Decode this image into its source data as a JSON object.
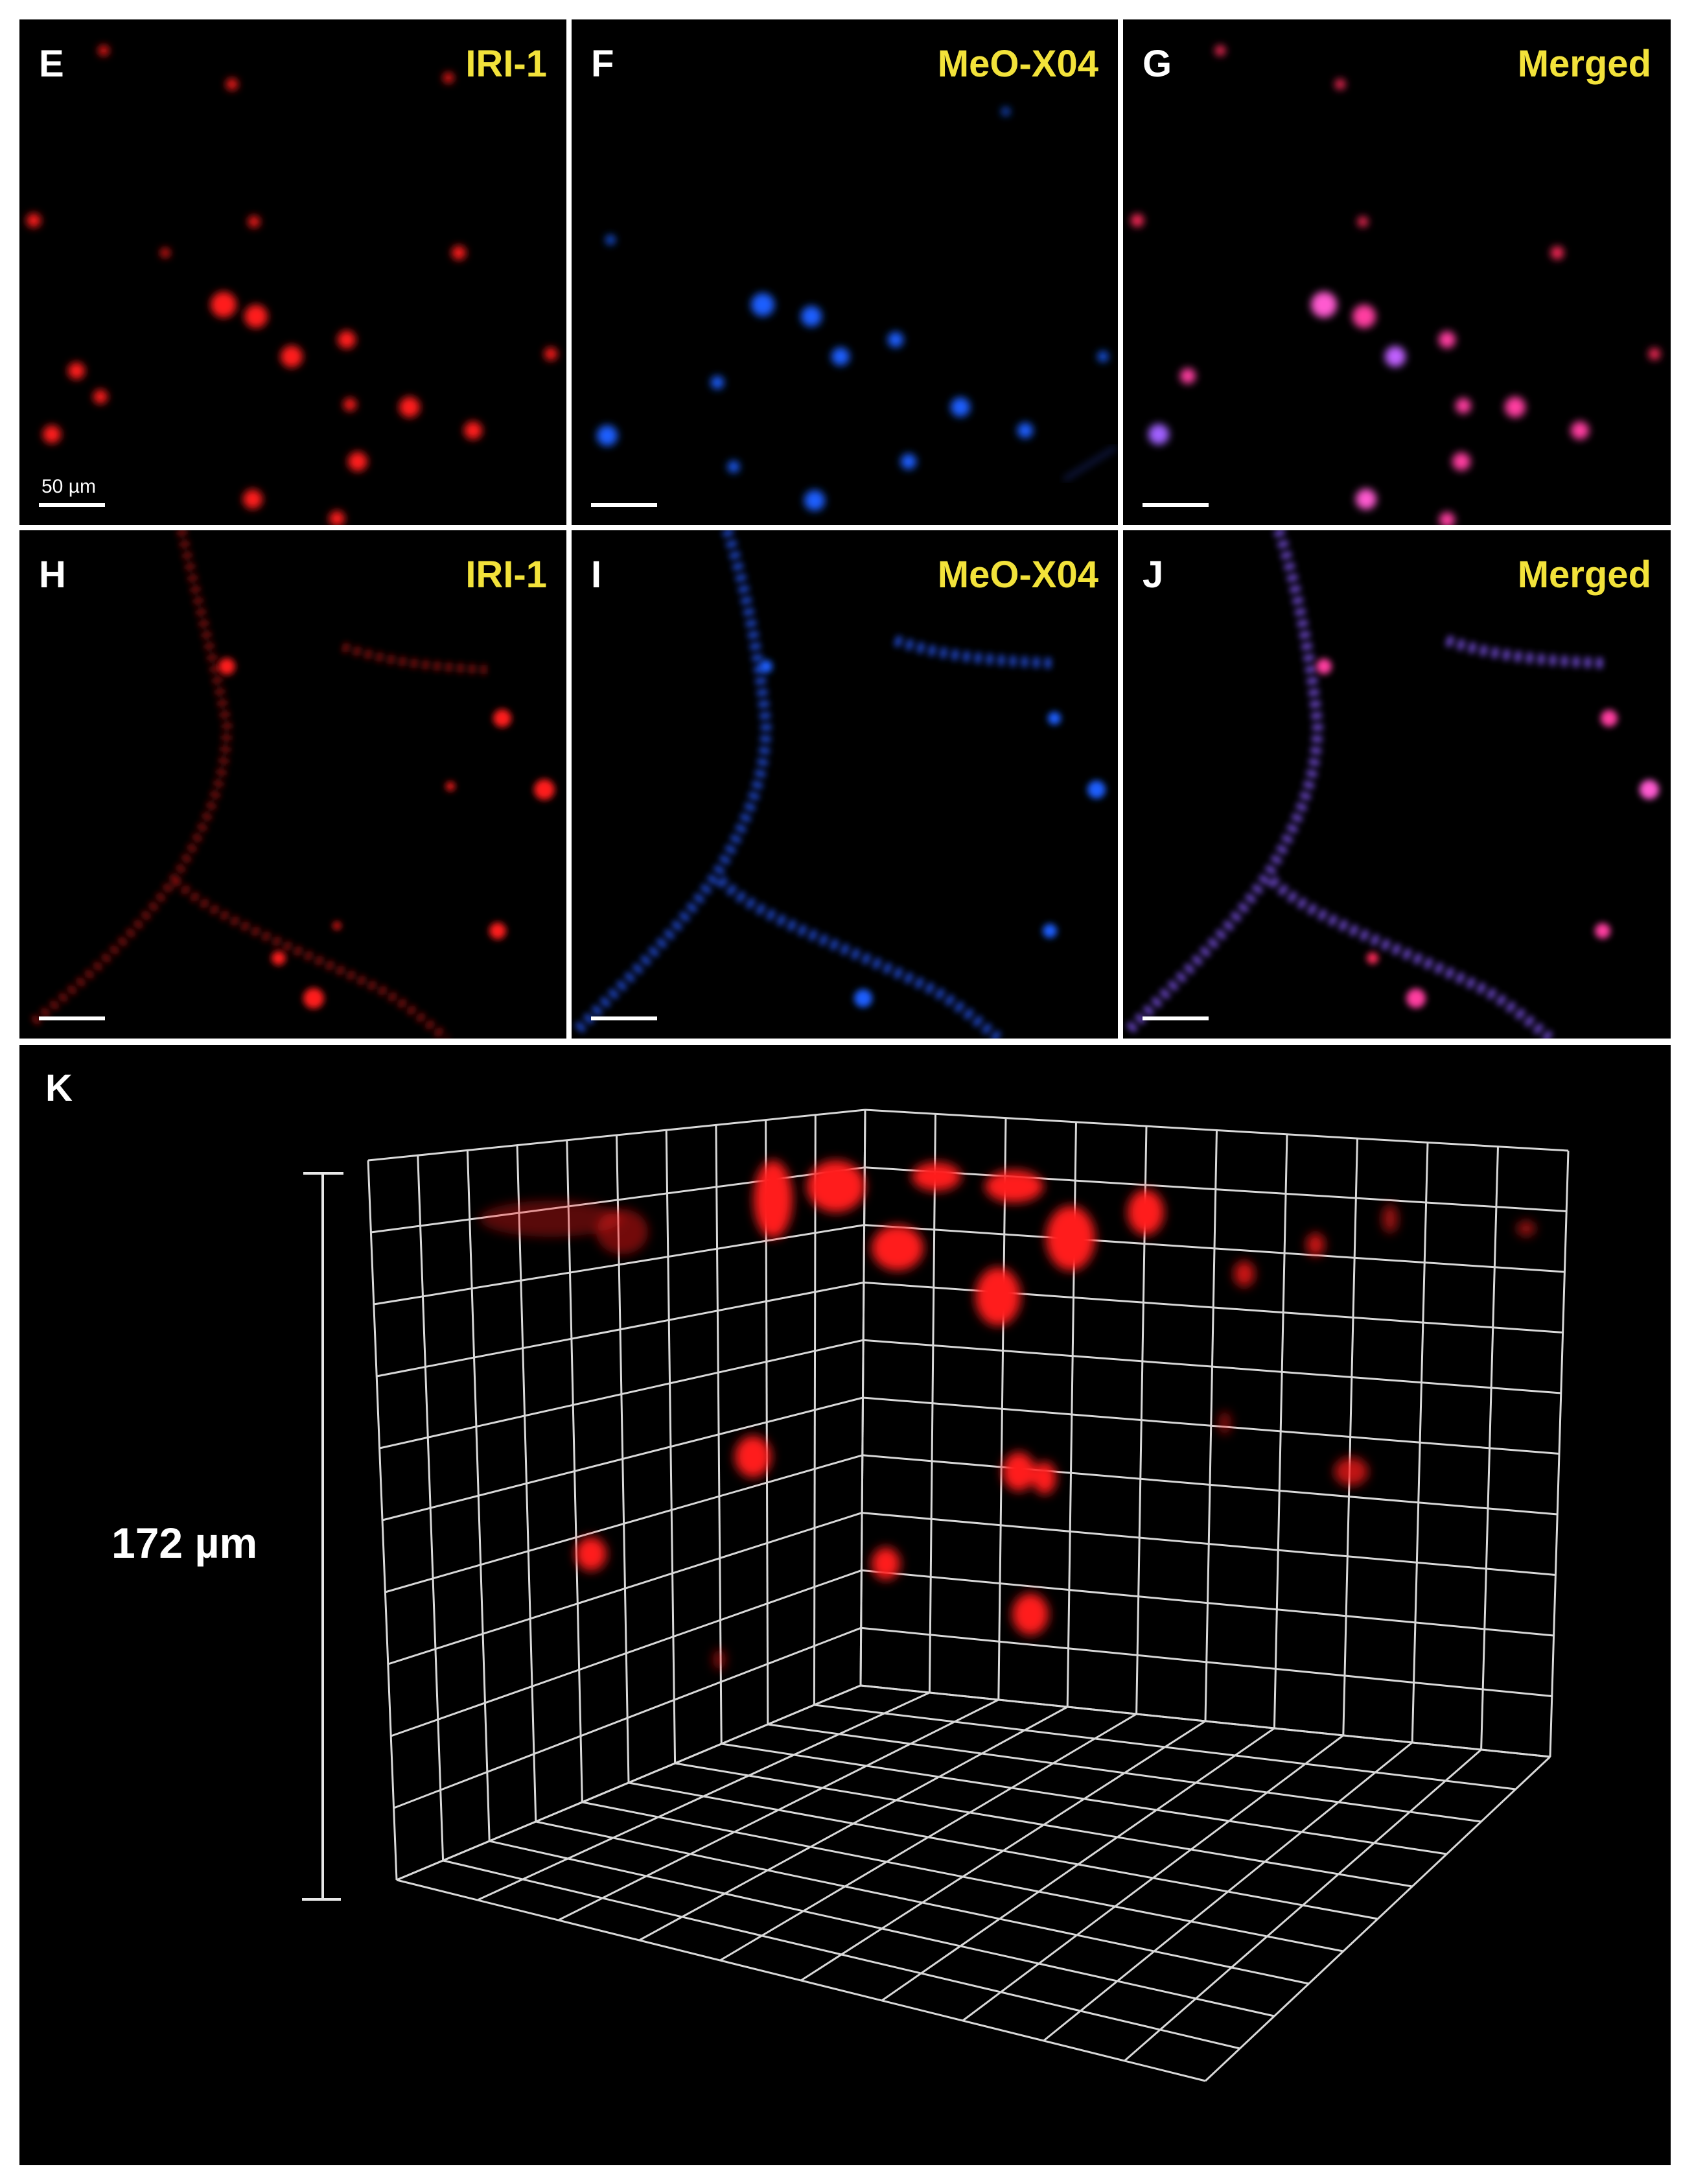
{
  "panels": {
    "E": {
      "letter": "E",
      "title": "IRI-1"
    },
    "F": {
      "letter": "F",
      "title": "MeO-X04"
    },
    "G": {
      "letter": "G",
      "title": "Merged"
    },
    "H": {
      "letter": "H",
      "title": "IRI-1"
    },
    "I": {
      "letter": "I",
      "title": "MeO-X04"
    },
    "J": {
      "letter": "J",
      "title": "Merged"
    },
    "K": {
      "letter": "K",
      "depth_label": "172 µm"
    }
  },
  "scale_bar_label": "50 µm",
  "colors": {
    "background": "#000000",
    "label_yellow": "#f2e23a",
    "iri1_red": "#ff1a1a",
    "meo_blue": "#1f5fff",
    "merged_magenta": "#ff3ca0",
    "merged_violet": "#8a5cff",
    "grid": "#d8d8d8"
  }
}
